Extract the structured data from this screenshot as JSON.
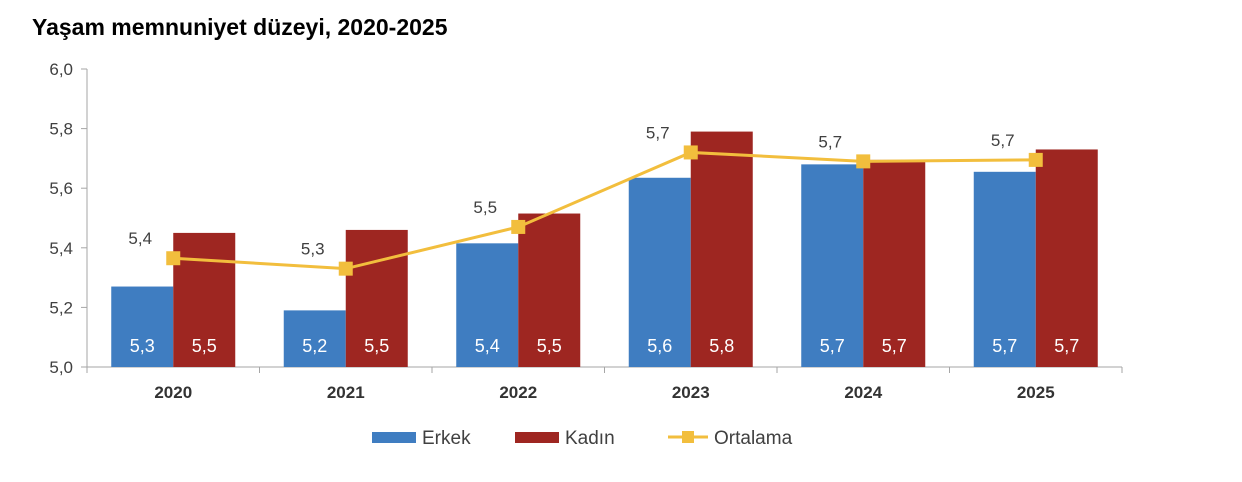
{
  "chart_data": {
    "type": "bar",
    "title": "Yaşam memnuniyet düzeyi, 2020-2025",
    "categories": [
      "2020",
      "2021",
      "2022",
      "2023",
      "2024",
      "2025"
    ],
    "ylim": [
      5.0,
      6.0
    ],
    "yticks": [
      "5,0",
      "5,2",
      "5,4",
      "5,6",
      "5,8",
      "6,0"
    ],
    "ytick_values": [
      5.0,
      5.2,
      5.4,
      5.6,
      5.8,
      6.0
    ],
    "grid": false,
    "legend_position": "bottom",
    "series": [
      {
        "name": "Erkek",
        "kind": "bar",
        "color": "#3F7DC1",
        "values": [
          5.27,
          5.19,
          5.415,
          5.635,
          5.68,
          5.655
        ],
        "labels": [
          "5,3",
          "5,2",
          "5,4",
          "5,6",
          "5,7",
          "5,7"
        ]
      },
      {
        "name": "Kadın",
        "kind": "bar",
        "color": "#9E2621",
        "values": [
          5.45,
          5.46,
          5.515,
          5.79,
          5.695,
          5.73
        ],
        "labels": [
          "5,5",
          "5,5",
          "5,5",
          "5,8",
          "5,7",
          "5,7"
        ]
      },
      {
        "name": "Ortalama",
        "kind": "line",
        "color": "#F2BE3D",
        "values": [
          5.365,
          5.33,
          5.47,
          5.72,
          5.69,
          5.695
        ],
        "labels": [
          "5,4",
          "5,3",
          "5,5",
          "5,7",
          "5,7",
          "5,7"
        ]
      }
    ]
  }
}
